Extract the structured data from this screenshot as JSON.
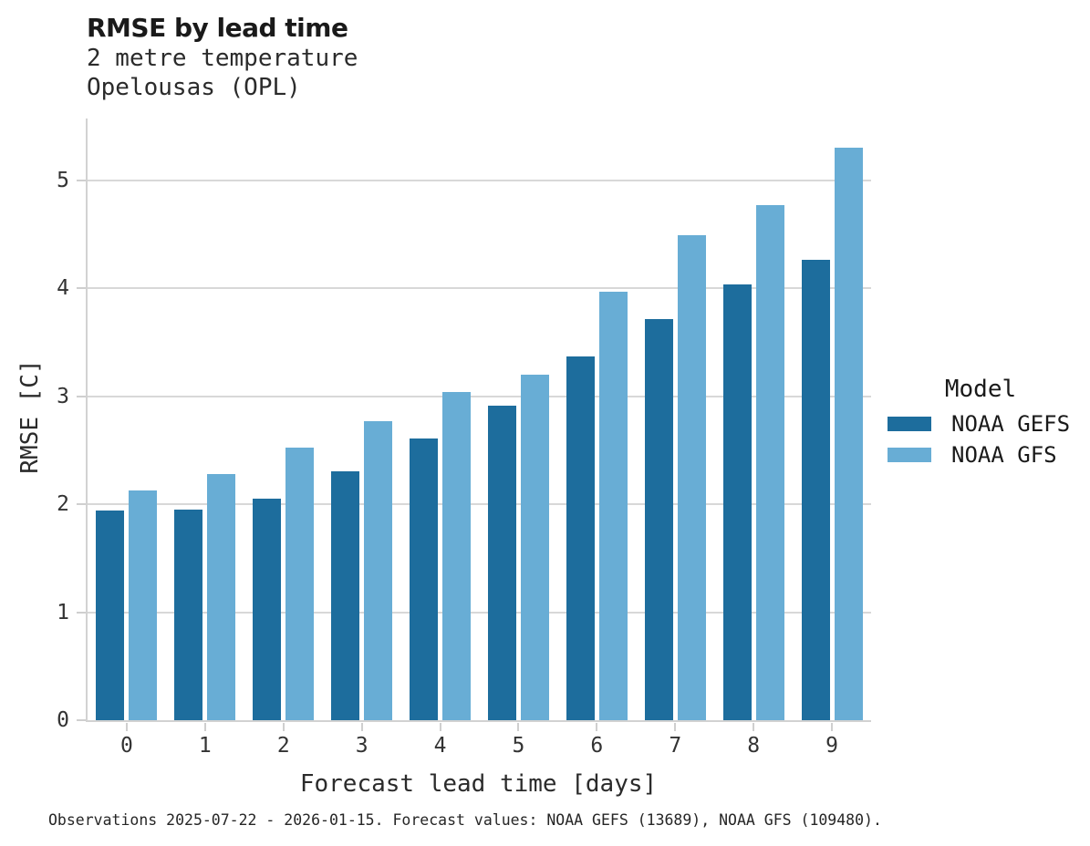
{
  "header": {
    "title": "RMSE by lead time",
    "subtitle_line1": "2 metre temperature",
    "subtitle_line2": "Opelousas (OPL)"
  },
  "chart_data": {
    "type": "bar",
    "title": "RMSE by lead time",
    "subtitle": [
      "2 metre temperature",
      "Opelousas (OPL)"
    ],
    "categories": [
      "0",
      "1",
      "2",
      "3",
      "4",
      "5",
      "6",
      "7",
      "8",
      "9"
    ],
    "series": [
      {
        "name": "NOAA GEFS",
        "color": "#1d6d9d",
        "values": [
          1.94,
          1.95,
          2.05,
          2.3,
          2.61,
          2.91,
          3.37,
          3.71,
          4.03,
          4.26
        ]
      },
      {
        "name": "NOAA GFS",
        "color": "#68add5",
        "values": [
          2.13,
          2.28,
          2.52,
          2.77,
          3.04,
          3.2,
          3.97,
          4.49,
          4.77,
          5.3
        ]
      }
    ],
    "xlabel": "Forecast lead time [days]",
    "ylabel": "RMSE [C]",
    "ylim": [
      0,
      5.57
    ],
    "yticks": [
      0,
      1,
      2,
      3,
      4,
      5
    ],
    "grid": "horizontal",
    "legend_title": "Model",
    "legend_position": "right"
  },
  "footer": {
    "caption": "Observations 2025-07-22 - 2026-01-15. Forecast values: NOAA GEFS (13689), NOAA GFS (109480)."
  },
  "colors": {
    "background": "#ffffff",
    "grid": "#d8d8d8",
    "axis": "#d2d2d2",
    "text": "#1a1a1a"
  }
}
